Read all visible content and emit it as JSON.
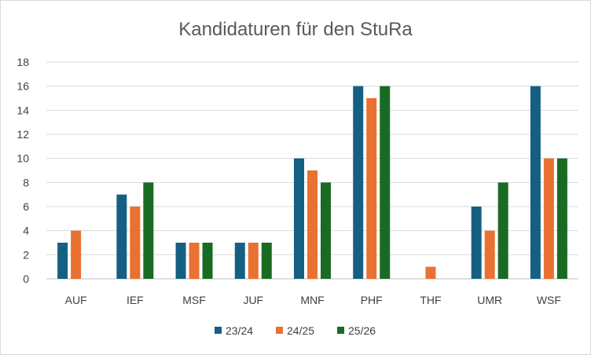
{
  "chart_data": {
    "type": "bar",
    "title": "Kandidaturen für den StuRa",
    "xlabel": "",
    "ylabel": "",
    "ylim": [
      0,
      18
    ],
    "yticks": [
      0,
      2,
      4,
      6,
      8,
      10,
      12,
      14,
      16,
      18
    ],
    "grid": true,
    "legend_position": "bottom",
    "categories": [
      "AUF",
      "IEF",
      "MSF",
      "JUF",
      "MNF",
      "PHF",
      "THF",
      "UMR",
      "WSF"
    ],
    "series": [
      {
        "name": "23/24",
        "color": "#156082",
        "values": [
          3,
          7,
          3,
          3,
          10,
          16,
          0,
          6,
          16
        ]
      },
      {
        "name": "24/25",
        "color": "#E97132",
        "values": [
          4,
          6,
          3,
          3,
          9,
          15,
          1,
          4,
          10
        ]
      },
      {
        "name": "25/26",
        "color": "#196B24",
        "values": [
          0,
          8,
          3,
          3,
          8,
          16,
          0,
          8,
          10
        ]
      }
    ]
  }
}
